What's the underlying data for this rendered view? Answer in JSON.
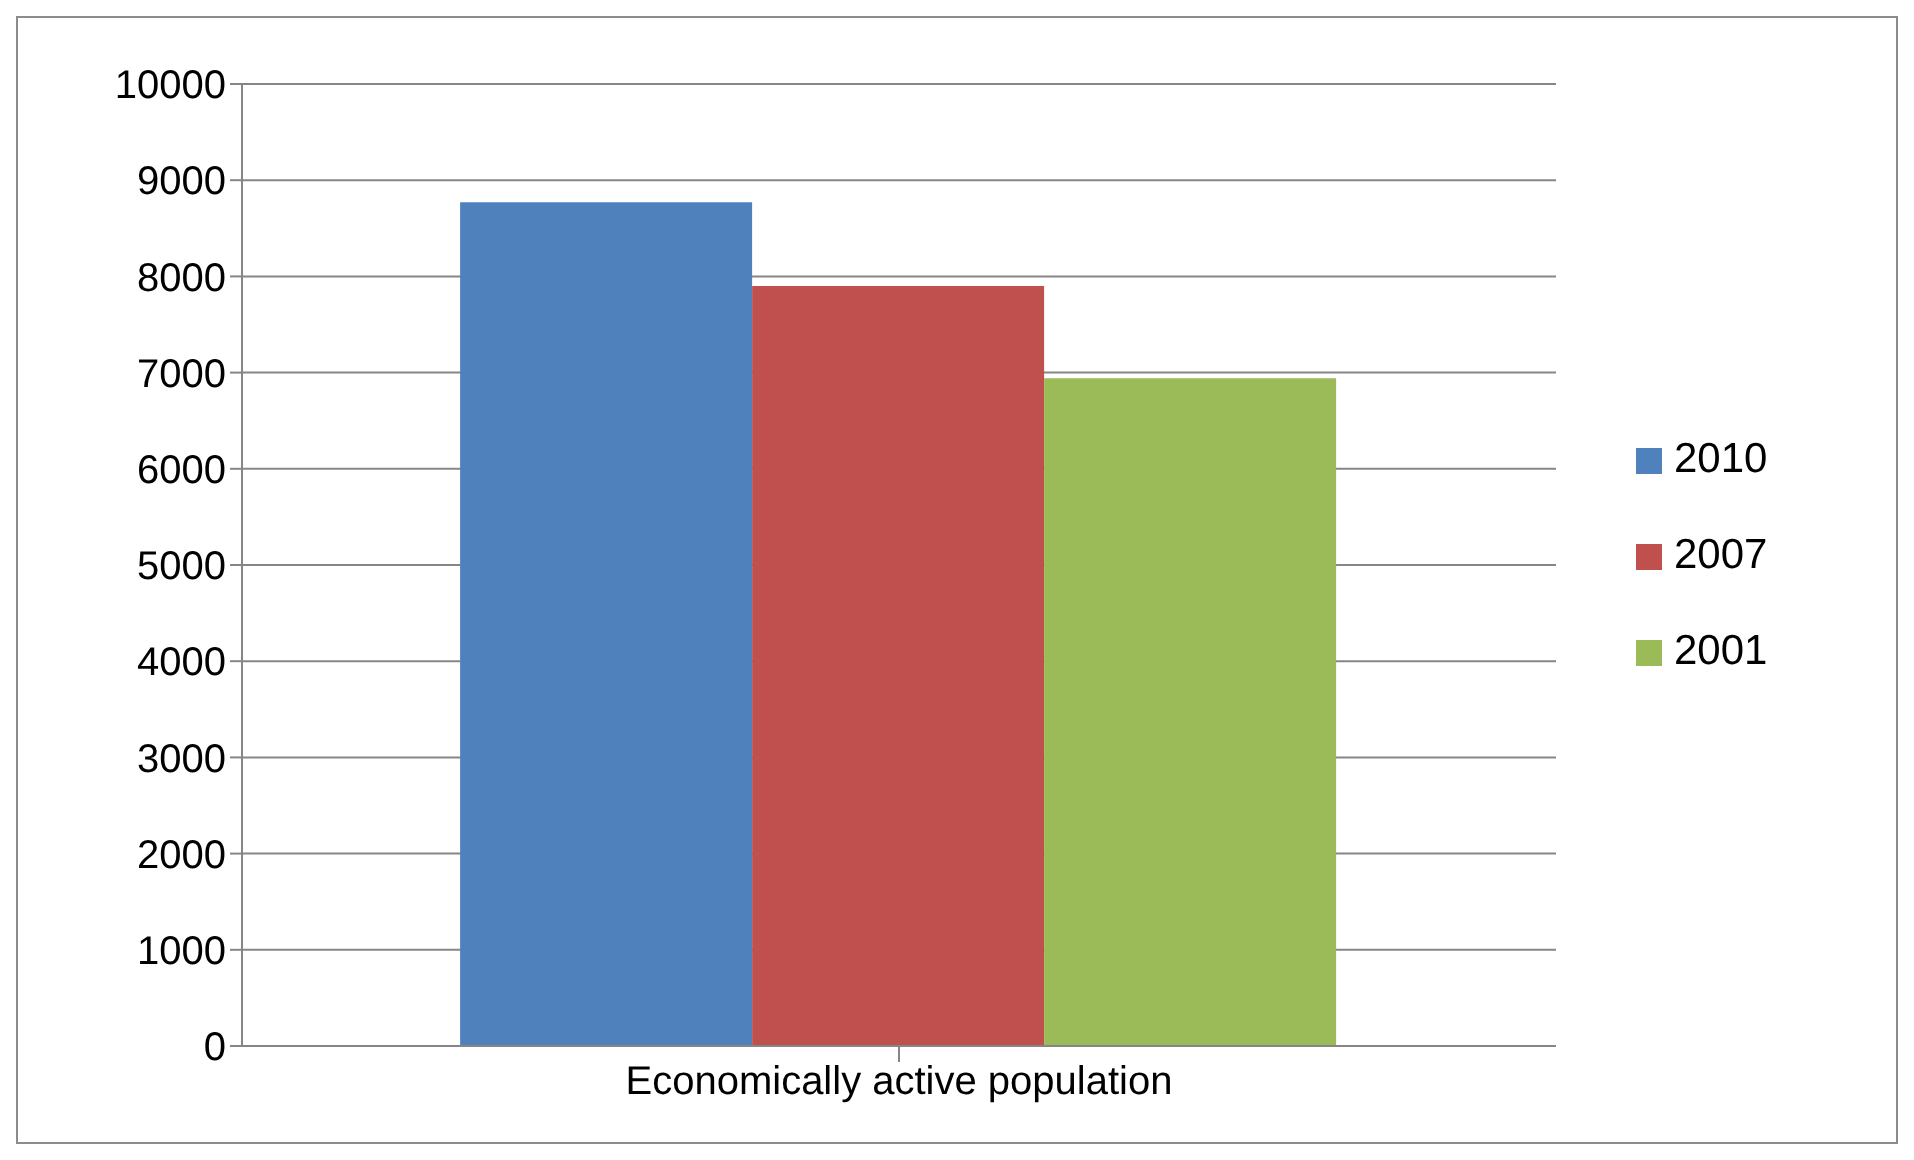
{
  "chart_data": {
    "type": "bar",
    "categories": [
      "Economically active population"
    ],
    "series": [
      {
        "name": "2010",
        "color": "#4f81bd",
        "values": [
          8770
        ]
      },
      {
        "name": "2007",
        "color": "#c0504d",
        "values": [
          7900
        ]
      },
      {
        "name": "2001",
        "color": "#9bbb59",
        "values": [
          6940
        ]
      }
    ],
    "ylim": [
      0,
      10000
    ],
    "yticks": [
      0,
      1000,
      2000,
      3000,
      4000,
      5000,
      6000,
      7000,
      8000,
      9000,
      10000
    ],
    "grid": "y",
    "legend": "right"
  }
}
